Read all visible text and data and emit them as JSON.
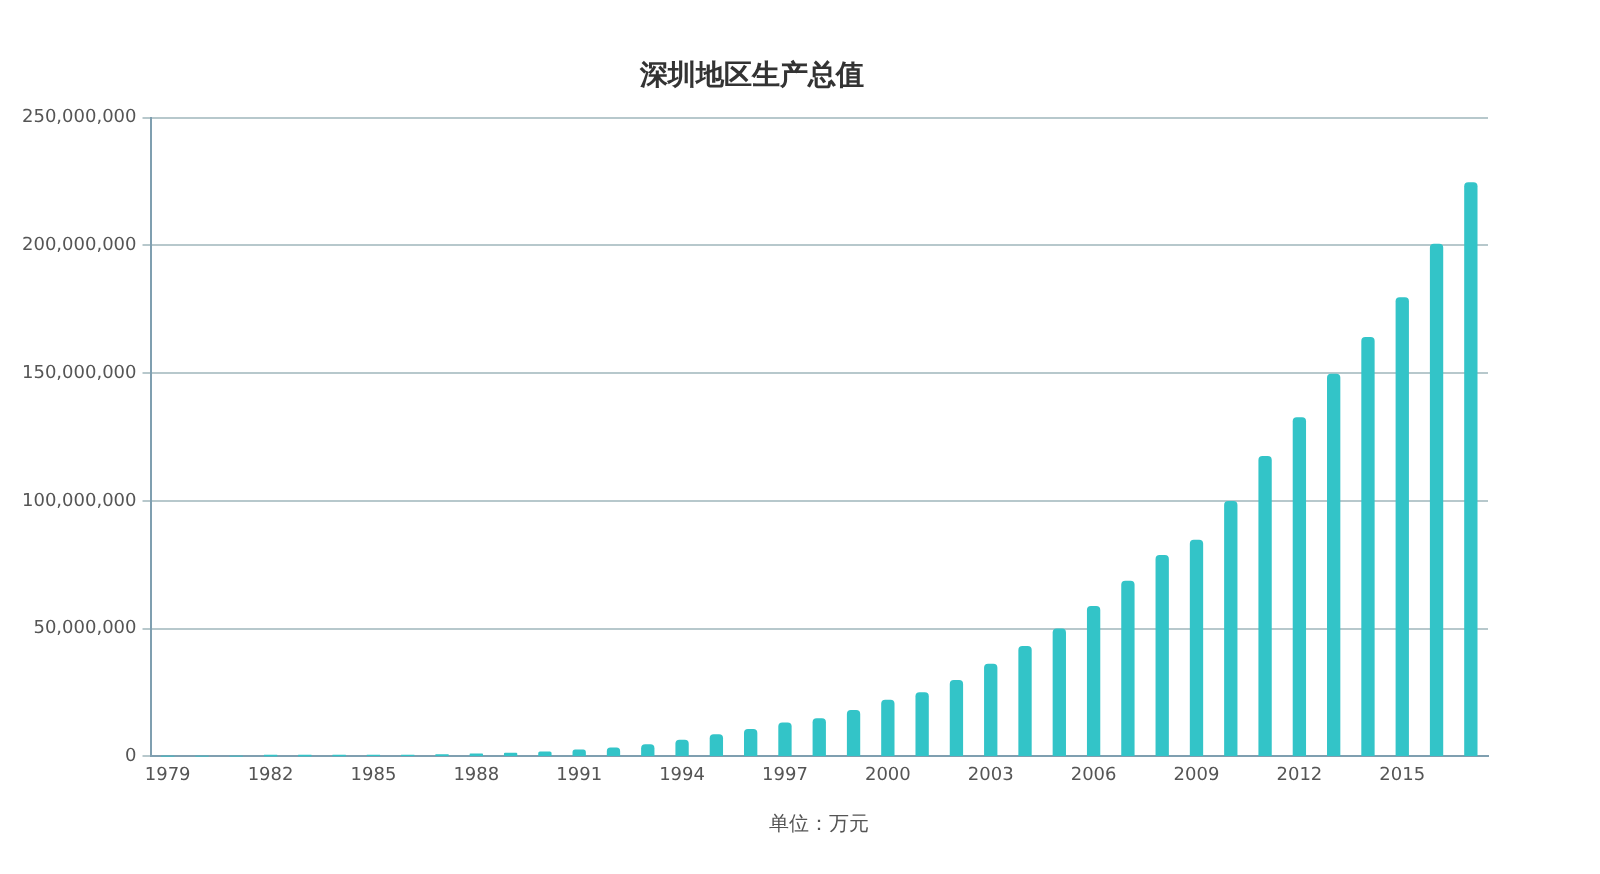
{
  "chart_data": {
    "type": "bar",
    "title": "深圳地区生产总值",
    "categories": [
      "1979",
      null,
      null,
      "1982",
      null,
      null,
      "1985",
      null,
      null,
      "1988",
      null,
      null,
      "1991",
      null,
      null,
      "1994",
      null,
      null,
      "1997",
      null,
      null,
      "2000",
      null,
      null,
      "2003",
      null,
      null,
      "2006",
      null,
      null,
      "2009",
      null,
      null,
      "2012",
      null,
      null,
      "2015",
      null,
      null
    ],
    "values": [
      0,
      0,
      0,
      100000,
      100000,
      200000,
      400000,
      400000,
      600000,
      900000,
      1200000,
      1700000,
      2400000,
      3200000,
      4500000,
      6300000,
      8400000,
      10500000,
      13000000,
      14700000,
      17900000,
      21900000,
      24800000,
      29600000,
      36000000,
      42900000,
      49800000,
      58600000,
      68500000,
      78600000,
      84500000,
      99700000,
      117300000,
      132500000,
      149500000,
      163900000,
      179400000,
      200400000,
      224400000
    ],
    "color": "#33c4c8",
    "ylim": [
      0,
      250000000
    ],
    "yticks": [
      {
        "value": 0,
        "label": "0"
      },
      {
        "value": 50000000,
        "label": "50,000,000"
      },
      {
        "value": 100000000,
        "label": "100,000,000"
      },
      {
        "value": 150000000,
        "label": "150,000,000"
      },
      {
        "value": 200000000,
        "label": "200,000,000"
      },
      {
        "value": 250000000,
        "label": "250,000,000"
      }
    ],
    "grid": "y",
    "annotations": [
      "单位：万元"
    ]
  }
}
